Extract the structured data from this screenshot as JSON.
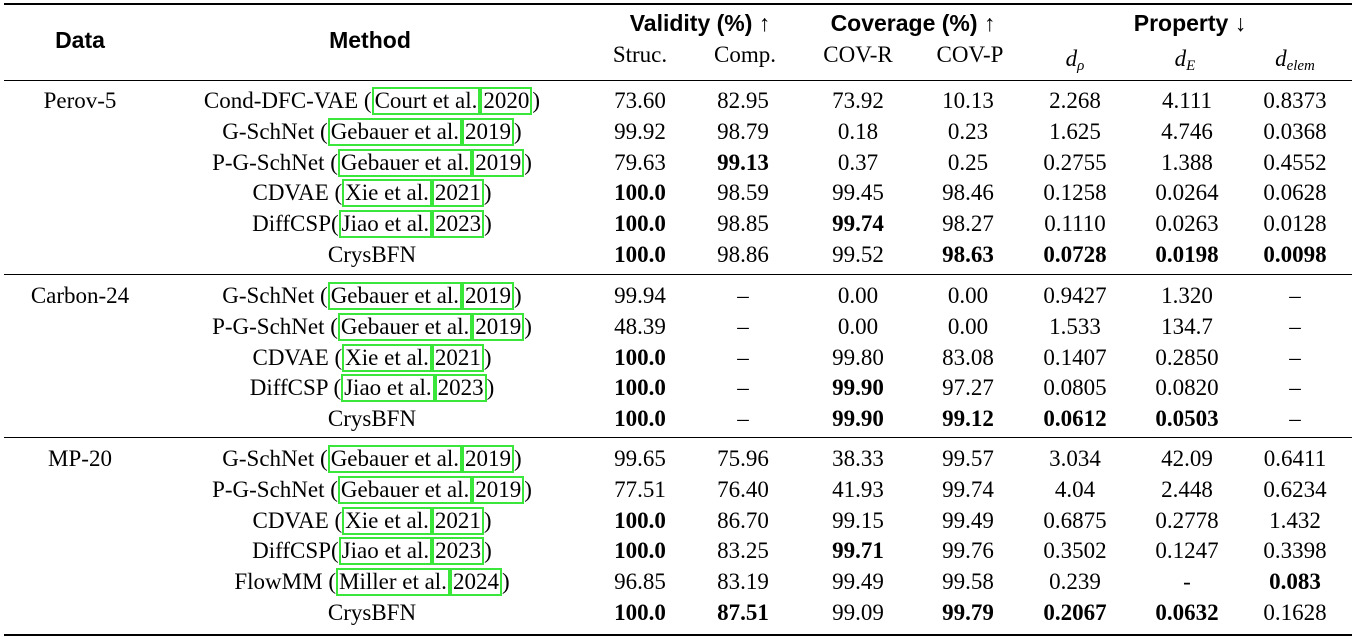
{
  "header": {
    "data": "Data",
    "method": "Method",
    "validity": "Validity (%) ↑",
    "coverage": "Coverage (%) ↑",
    "property": "Property ↓",
    "struc": "Struc.",
    "comp": "Comp.",
    "covr": "COV-R",
    "covp": "COV-P",
    "d_rho_base": "d",
    "d_rho_sub": "ρ",
    "d_e_base": "d",
    "d_e_sub": "E",
    "d_elem_base": "d",
    "d_elem_sub": "elem"
  },
  "groups": [
    {
      "dataset": "Perov-5",
      "rows": [
        {
          "method": "Cond-DFC-VAE",
          "author": "Court et al.",
          "year": "2020",
          "sep": " (",
          "close": ")",
          "values": [
            "73.60",
            "82.95",
            "73.92",
            "10.13",
            "2.268",
            "4.111",
            "0.8373"
          ],
          "bold": [
            false,
            false,
            false,
            false,
            false,
            false,
            false
          ]
        },
        {
          "method": "G-SchNet",
          "author": "Gebauer et al.",
          "year": "2019",
          "sep": " (",
          "close": ")",
          "values": [
            "99.92",
            "98.79",
            "0.18",
            "0.23",
            "1.625",
            "4.746",
            "0.0368"
          ],
          "bold": [
            false,
            false,
            false,
            false,
            false,
            false,
            false
          ]
        },
        {
          "method": "P-G-SchNet",
          "author": "Gebauer et al.",
          "year": "2019",
          "sep": " (",
          "close": ")",
          "values": [
            "79.63",
            "99.13",
            "0.37",
            "0.25",
            "0.2755",
            "1.388",
            "0.4552"
          ],
          "bold": [
            false,
            true,
            false,
            false,
            false,
            false,
            false
          ]
        },
        {
          "method": "CDVAE",
          "author": "Xie et al.",
          "year": "2021",
          "sep": " (",
          "close": ")",
          "values": [
            "100.0",
            "98.59",
            "99.45",
            "98.46",
            "0.1258",
            "0.0264",
            "0.0628"
          ],
          "bold": [
            true,
            false,
            false,
            false,
            false,
            false,
            false
          ]
        },
        {
          "method": "DiffCSP",
          "author": "Jiao et al.",
          "year": "2023",
          "sep": "(",
          "close": ")",
          "values": [
            "100.0",
            "98.85",
            "99.74",
            "98.27",
            "0.1110",
            "0.0263",
            "0.0128"
          ],
          "bold": [
            true,
            false,
            true,
            false,
            false,
            false,
            false
          ]
        },
        {
          "method": "CrysBFN",
          "author": "",
          "year": "",
          "sep": "",
          "close": "",
          "values": [
            "100.0",
            "98.86",
            "99.52",
            "98.63",
            "0.0728",
            "0.0198",
            "0.0098"
          ],
          "bold": [
            true,
            false,
            false,
            true,
            true,
            true,
            true
          ]
        }
      ]
    },
    {
      "dataset": "Carbon-24",
      "rows": [
        {
          "method": "G-SchNet",
          "author": "Gebauer et al.",
          "year": "2019",
          "sep": " (",
          "close": ")",
          "values": [
            "99.94",
            "–",
            "0.00",
            "0.00",
            "0.9427",
            "1.320",
            "–"
          ],
          "bold": [
            false,
            false,
            false,
            false,
            false,
            false,
            false
          ]
        },
        {
          "method": "P-G-SchNet",
          "author": "Gebauer et al.",
          "year": "2019",
          "sep": " (",
          "close": ")",
          "values": [
            "48.39",
            "–",
            "0.00",
            "0.00",
            "1.533",
            "134.7",
            "–"
          ],
          "bold": [
            false,
            false,
            false,
            false,
            false,
            false,
            false
          ]
        },
        {
          "method": "CDVAE",
          "author": "Xie et al.",
          "year": "2021",
          "sep": " (",
          "close": ")",
          "values": [
            "100.0",
            "–",
            "99.80",
            "83.08",
            "0.1407",
            "0.2850",
            "–"
          ],
          "bold": [
            true,
            false,
            false,
            false,
            false,
            false,
            false
          ]
        },
        {
          "method": "DiffCSP",
          "author": "Jiao et al.",
          "year": "2023",
          "sep": " (",
          "close": ")",
          "values": [
            "100.0",
            "–",
            "99.90",
            "97.27",
            "0.0805",
            "0.0820",
            "–"
          ],
          "bold": [
            true,
            false,
            true,
            false,
            false,
            false,
            false
          ]
        },
        {
          "method": "CrysBFN",
          "author": "",
          "year": "",
          "sep": "",
          "close": "",
          "values": [
            "100.0",
            "–",
            "99.90",
            "99.12",
            "0.0612",
            "0.0503",
            "–"
          ],
          "bold": [
            true,
            false,
            true,
            true,
            true,
            true,
            false
          ]
        }
      ]
    },
    {
      "dataset": "MP-20",
      "rows": [
        {
          "method": "G-SchNet",
          "author": "Gebauer et al.",
          "year": "2019",
          "sep": " (",
          "close": ")",
          "values": [
            "99.65",
            "75.96",
            "38.33",
            "99.57",
            "3.034",
            "42.09",
            "0.6411"
          ],
          "bold": [
            false,
            false,
            false,
            false,
            false,
            false,
            false
          ]
        },
        {
          "method": "P-G-SchNet",
          "author": "Gebauer et al.",
          "year": "2019",
          "sep": " (",
          "close": ")",
          "values": [
            "77.51",
            "76.40",
            "41.93",
            "99.74",
            "4.04",
            "2.448",
            "0.6234"
          ],
          "bold": [
            false,
            false,
            false,
            false,
            false,
            false,
            false
          ]
        },
        {
          "method": "CDVAE",
          "author": "Xie et al.",
          "year": "2021",
          "sep": " (",
          "close": ")",
          "values": [
            "100.0",
            "86.70",
            "99.15",
            "99.49",
            "0.6875",
            "0.2778",
            "1.432"
          ],
          "bold": [
            true,
            false,
            false,
            false,
            false,
            false,
            false
          ]
        },
        {
          "method": "DiffCSP",
          "author": "Jiao et al.",
          "year": "2023",
          "sep": "(",
          "close": ")",
          "values": [
            "100.0",
            "83.25",
            "99.71",
            "99.76",
            "0.3502",
            "0.1247",
            "0.3398"
          ],
          "bold": [
            true,
            false,
            true,
            false,
            false,
            false,
            false
          ]
        },
        {
          "method": "FlowMM",
          "author": "Miller et al.",
          "year": "2024",
          "sep": " (",
          "close": ")",
          "values": [
            "96.85",
            "83.19",
            "99.49",
            "99.58",
            "0.239",
            "-",
            "0.083"
          ],
          "bold": [
            false,
            false,
            false,
            false,
            false,
            false,
            true
          ]
        },
        {
          "method": "CrysBFN",
          "author": "",
          "year": "",
          "sep": "",
          "close": "",
          "values": [
            "100.0",
            "87.51",
            "99.09",
            "99.79",
            "0.2067",
            "0.0632",
            "0.1628"
          ],
          "bold": [
            true,
            true,
            false,
            true,
            true,
            true,
            false
          ]
        }
      ]
    }
  ]
}
